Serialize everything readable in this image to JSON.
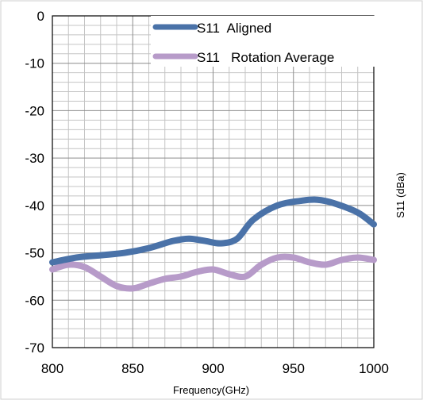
{
  "chart_data": {
    "type": "line",
    "title": "",
    "xlabel": "Frequency(GHz)",
    "ylabel": "S11 (dBa)",
    "xlim": [
      800,
      1000
    ],
    "ylim": [
      -70,
      0
    ],
    "x_ticks": [
      "800",
      "850",
      "900",
      "950",
      "1000"
    ],
    "y_ticks": [
      "0",
      "-10",
      "-20",
      "-30",
      "-40",
      "-50",
      "-60",
      "-70"
    ],
    "grid": true,
    "legend_position": "top-right",
    "series": [
      {
        "name": "S11  Aligned",
        "color": "#4a72a8",
        "x": [
          800,
          815,
          830,
          845,
          860,
          875,
          885,
          895,
          905,
          915,
          925,
          940,
          955,
          965,
          975,
          990,
          1000
        ],
        "y": [
          -52,
          -51,
          -50.5,
          -50,
          -49,
          -47.5,
          -47,
          -47.5,
          -48,
          -47,
          -43,
          -40,
          -39,
          -38.8,
          -39.5,
          -41.5,
          -44
        ]
      },
      {
        "name": "S11   Rotation Average",
        "color": "#b79bc9",
        "x": [
          800,
          810,
          820,
          830,
          840,
          850,
          860,
          870,
          880,
          890,
          900,
          910,
          920,
          930,
          940,
          950,
          960,
          970,
          980,
          990,
          1000
        ],
        "y": [
          -53.5,
          -52.5,
          -53,
          -55,
          -57,
          -57.5,
          -56.5,
          -55.5,
          -55,
          -54,
          -53.5,
          -54.5,
          -55,
          -52.5,
          -51,
          -51,
          -52,
          -52.5,
          -51.5,
          -51,
          -51.5
        ]
      }
    ]
  }
}
